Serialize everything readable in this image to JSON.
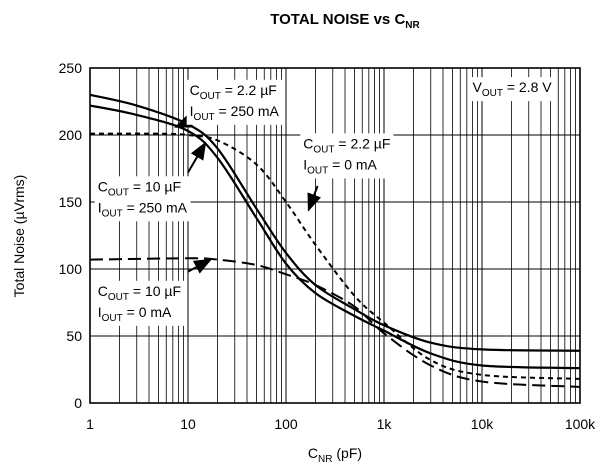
{
  "chart_data": {
    "type": "line",
    "title": {
      "main": "TOTAL NOISE vs C",
      "sub": "NR"
    },
    "xlabel": {
      "main": "C",
      "sub": "NR",
      "suffix": " (pF)"
    },
    "ylabel": "Total Noise (µVrms)",
    "x_scale": "log",
    "xlim": [
      1,
      100000
    ],
    "ylim": [
      0,
      250
    ],
    "grid": true,
    "x_ticks": [
      {
        "value": 1,
        "label": "1"
      },
      {
        "value": 10,
        "label": "10"
      },
      {
        "value": 100,
        "label": "100"
      },
      {
        "value": 1000,
        "label": "1k"
      },
      {
        "value": 10000,
        "label": "10k"
      },
      {
        "value": 100000,
        "label": "100k"
      }
    ],
    "y_ticks": [
      {
        "value": 0,
        "label": "0"
      },
      {
        "value": 50,
        "label": "50"
      },
      {
        "value": 100,
        "label": "100"
      },
      {
        "value": 150,
        "label": "150"
      },
      {
        "value": 200,
        "label": "200"
      },
      {
        "value": 250,
        "label": "250"
      }
    ],
    "series": [
      {
        "key": "s1",
        "style": "solid",
        "points": [
          [
            1,
            230
          ],
          [
            3,
            222
          ],
          [
            10,
            208
          ],
          [
            20,
            190
          ],
          [
            50,
            145
          ],
          [
            100,
            112
          ],
          [
            200,
            88
          ],
          [
            500,
            70
          ],
          [
            1000,
            58
          ],
          [
            3000,
            45
          ],
          [
            10000,
            40
          ],
          [
            100000,
            39
          ]
        ]
      },
      {
        "key": "s2",
        "style": "solid",
        "points": [
          [
            1,
            222
          ],
          [
            3,
            215
          ],
          [
            10,
            203
          ],
          [
            20,
            183
          ],
          [
            50,
            138
          ],
          [
            100,
            104
          ],
          [
            200,
            82
          ],
          [
            500,
            65
          ],
          [
            1000,
            54
          ],
          [
            3000,
            37
          ],
          [
            10000,
            28
          ],
          [
            100000,
            26
          ]
        ]
      },
      {
        "key": "s3",
        "style": "short-dash",
        "points": [
          [
            1,
            201
          ],
          [
            5,
            201
          ],
          [
            10,
            200
          ],
          [
            20,
            196
          ],
          [
            50,
            178
          ],
          [
            100,
            150
          ],
          [
            200,
            118
          ],
          [
            500,
            80
          ],
          [
            1000,
            60
          ],
          [
            3000,
            32
          ],
          [
            10000,
            21
          ],
          [
            100000,
            18
          ]
        ]
      },
      {
        "key": "s4",
        "style": "long-dash",
        "points": [
          [
            1,
            107
          ],
          [
            10,
            108
          ],
          [
            20,
            107
          ],
          [
            50,
            103
          ],
          [
            100,
            96
          ],
          [
            200,
            88
          ],
          [
            500,
            72
          ],
          [
            1000,
            52
          ],
          [
            3000,
            28
          ],
          [
            10000,
            16
          ],
          [
            100000,
            12
          ]
        ]
      }
    ],
    "annotations": [
      {
        "lines": [
          [
            "C",
            "OUT",
            " = 2.2 µF"
          ],
          [
            "I",
            "OUT",
            " = 250 mA"
          ]
        ],
        "text_at": [
          10.4,
          230
        ],
        "arrow_from": [
          11,
          211
        ],
        "arrow_to": [
          7.5,
          206
        ]
      },
      {
        "lines": [
          [
            "C",
            "OUT",
            " = 2.2 µF"
          ],
          [
            "I",
            "OUT",
            " = 0 mA"
          ]
        ],
        "text_at": [
          150,
          190
        ],
        "arrow_from": [
          210,
          162
        ],
        "arrow_to": [
          170,
          144
        ]
      },
      {
        "lines": [
          [
            "C",
            "OUT",
            " = 10 µF"
          ],
          [
            "I",
            "OUT",
            " = 250 mA"
          ]
        ],
        "text_at": [
          1.2,
          158
        ],
        "arrow_from": [
          10,
          172
        ],
        "arrow_to": [
          15,
          194
        ]
      },
      {
        "lines": [
          [
            "C",
            "OUT",
            " = 10 µF"
          ],
          [
            "I",
            "OUT",
            " = 0 mA"
          ]
        ],
        "text_at": [
          1.2,
          80
        ],
        "arrow_from": [
          10,
          98
        ],
        "arrow_to": [
          17,
          107
        ]
      },
      {
        "lines": [
          [
            "V",
            "OUT",
            " = 2.8 V"
          ]
        ],
        "text_at": [
          8000,
          232
        ],
        "arrow_from": null,
        "arrow_to": null
      }
    ]
  }
}
